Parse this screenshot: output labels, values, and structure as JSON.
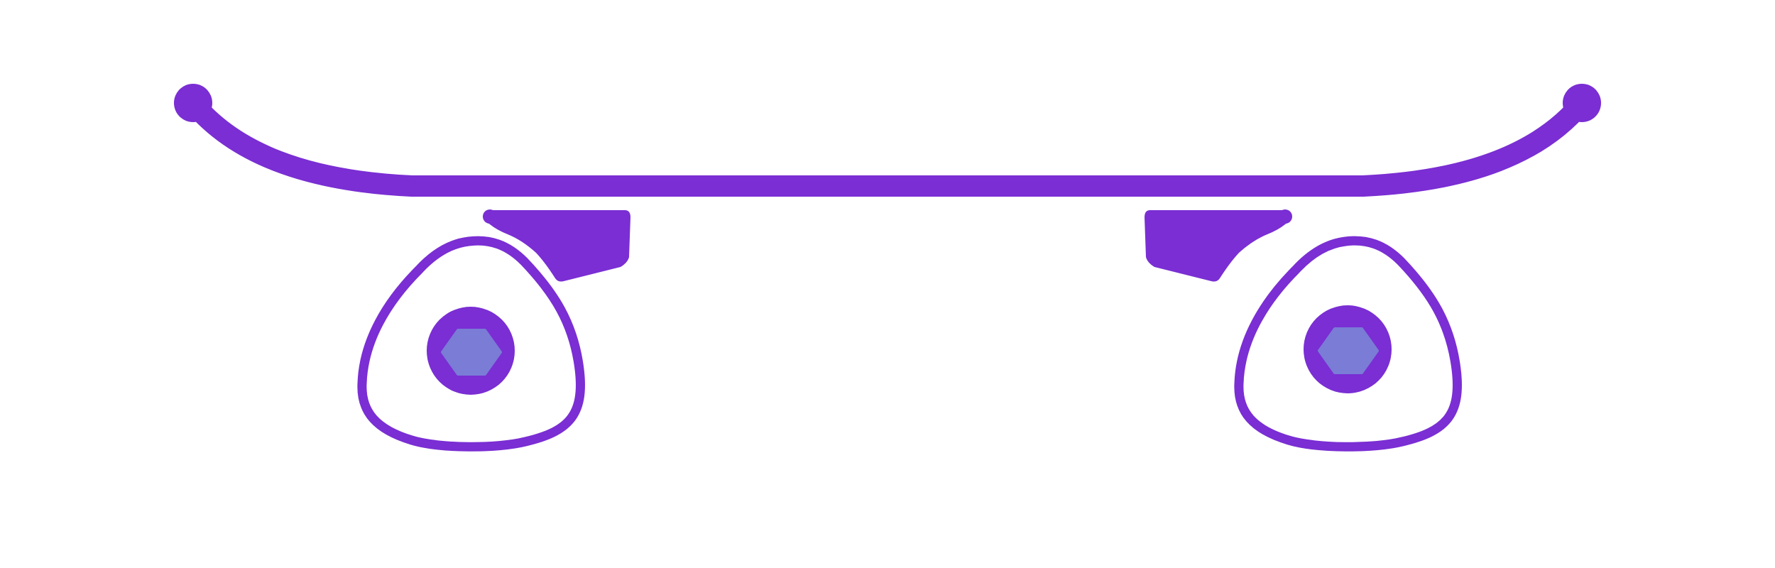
{
  "illustration": {
    "subject": "skateboard-icon",
    "colors": {
      "primary": "#7A2ED3",
      "hub": "#7A7CD6",
      "background": "#FFFFFF"
    },
    "parts": {
      "deck": "deck",
      "trucks": [
        "left-truck",
        "right-truck"
      ],
      "wheels": [
        "left-wheel",
        "right-wheel"
      ]
    }
  }
}
